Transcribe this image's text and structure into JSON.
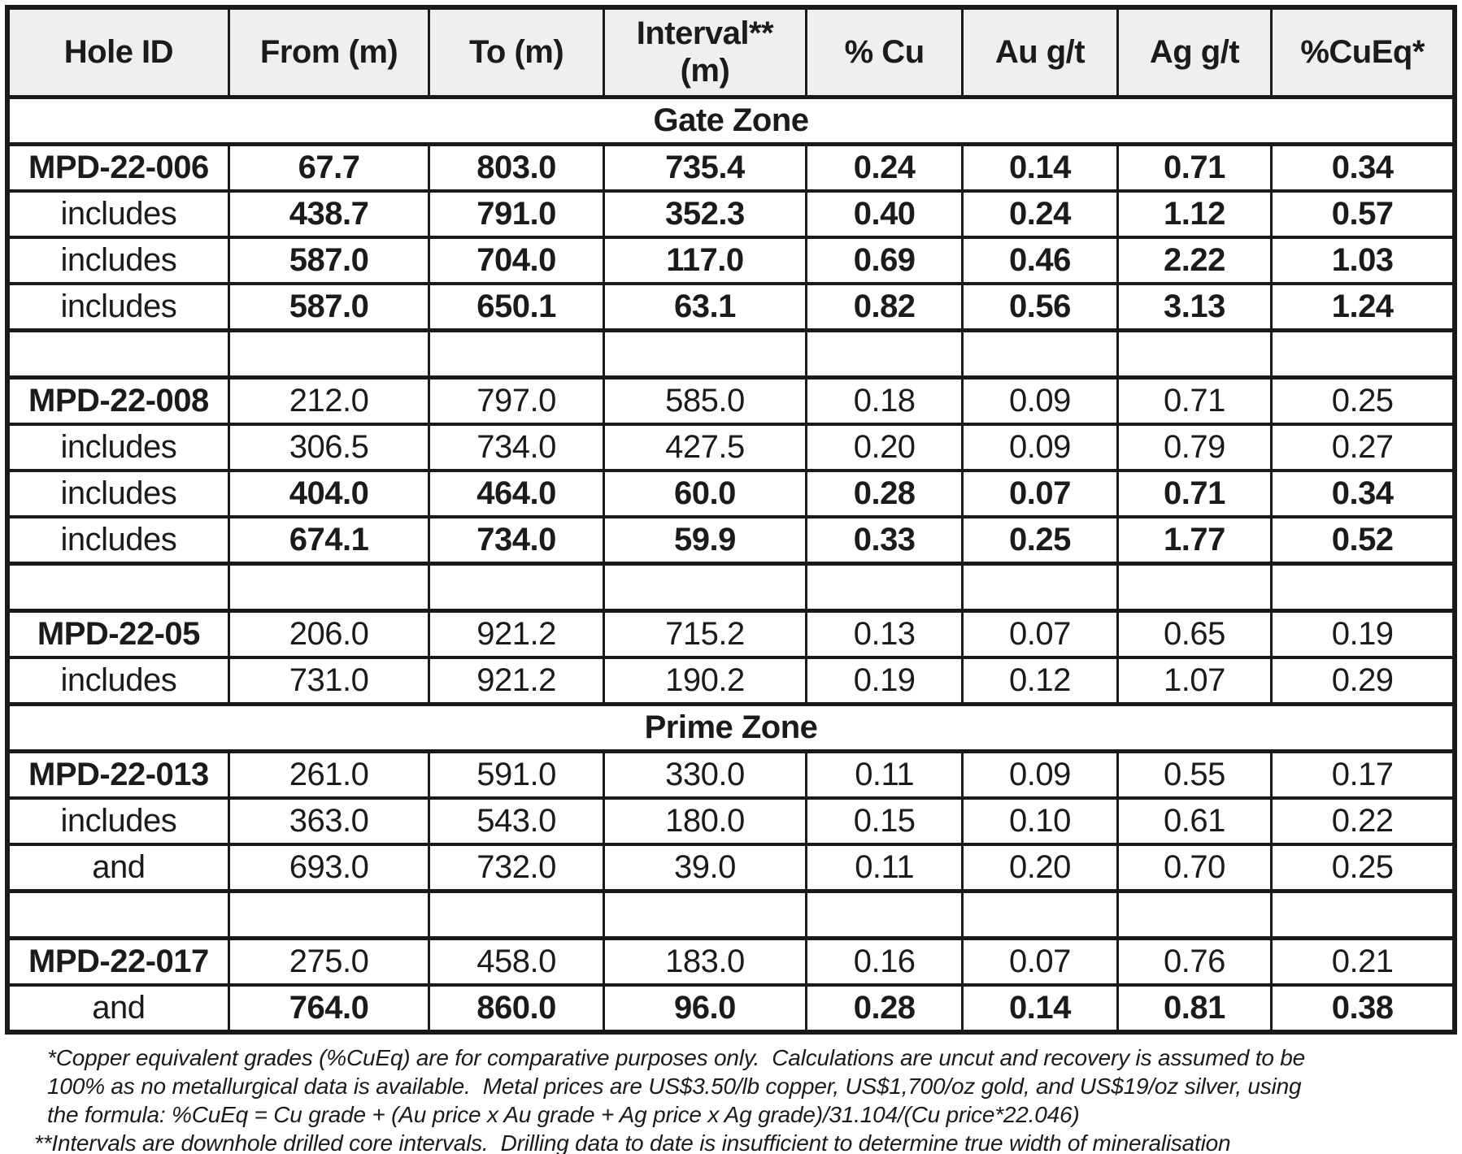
{
  "table": {
    "columns": [
      "Hole ID",
      "From (m)",
      "To (m)",
      "Interval**\n(m)",
      "% Cu",
      "Au g/t",
      "Ag g/t",
      "%CuEq*"
    ],
    "rows": [
      {
        "type": "zone",
        "label": "Gate Zone"
      },
      {
        "type": "data",
        "label": "MPD-22-006",
        "label_bold": true,
        "values_bold": true,
        "values": [
          "67.7",
          "803.0",
          "735.4",
          "0.24",
          "0.14",
          "0.71",
          "0.34"
        ]
      },
      {
        "type": "data",
        "label": "includes",
        "label_bold": false,
        "values_bold": true,
        "values": [
          "438.7",
          "791.0",
          "352.3",
          "0.40",
          "0.24",
          "1.12",
          "0.57"
        ]
      },
      {
        "type": "data",
        "label": "includes",
        "label_bold": false,
        "values_bold": true,
        "values": [
          "587.0",
          "704.0",
          "117.0",
          "0.69",
          "0.46",
          "2.22",
          "1.03"
        ]
      },
      {
        "type": "data",
        "label": "includes",
        "label_bold": false,
        "values_bold": true,
        "values": [
          "587.0",
          "650.1",
          "63.1",
          "0.82",
          "0.56",
          "3.13",
          "1.24"
        ]
      },
      {
        "type": "spacer"
      },
      {
        "type": "data",
        "label": "MPD-22-008",
        "label_bold": true,
        "values_bold": false,
        "values": [
          "212.0",
          "797.0",
          "585.0",
          "0.18",
          "0.09",
          "0.71",
          "0.25"
        ]
      },
      {
        "type": "data",
        "label": "includes",
        "label_bold": false,
        "values_bold": false,
        "values": [
          "306.5",
          "734.0",
          "427.5",
          "0.20",
          "0.09",
          "0.79",
          "0.27"
        ]
      },
      {
        "type": "data",
        "label": "includes",
        "label_bold": false,
        "values_bold": true,
        "values": [
          "404.0",
          "464.0",
          "60.0",
          "0.28",
          "0.07",
          "0.71",
          "0.34"
        ]
      },
      {
        "type": "data",
        "label": "includes",
        "label_bold": false,
        "values_bold": true,
        "values": [
          "674.1",
          "734.0",
          "59.9",
          "0.33",
          "0.25",
          "1.77",
          "0.52"
        ]
      },
      {
        "type": "spacer"
      },
      {
        "type": "data",
        "label": "MPD-22-05",
        "label_bold": true,
        "values_bold": false,
        "values": [
          "206.0",
          "921.2",
          "715.2",
          "0.13",
          "0.07",
          "0.65",
          "0.19"
        ]
      },
      {
        "type": "data",
        "label": "includes",
        "label_bold": false,
        "values_bold": false,
        "values": [
          "731.0",
          "921.2",
          "190.2",
          "0.19",
          "0.12",
          "1.07",
          "0.29"
        ]
      },
      {
        "type": "zone",
        "label": "Prime Zone"
      },
      {
        "type": "data",
        "label": "MPD-22-013",
        "label_bold": true,
        "values_bold": false,
        "values": [
          "261.0",
          "591.0",
          "330.0",
          "0.11",
          "0.09",
          "0.55",
          "0.17"
        ]
      },
      {
        "type": "data",
        "label": "includes",
        "label_bold": false,
        "values_bold": false,
        "values": [
          "363.0",
          "543.0",
          "180.0",
          "0.15",
          "0.10",
          "0.61",
          "0.22"
        ]
      },
      {
        "type": "data",
        "label": "and",
        "label_bold": false,
        "values_bold": false,
        "values": [
          "693.0",
          "732.0",
          "39.0",
          "0.11",
          "0.20",
          "0.70",
          "0.25"
        ]
      },
      {
        "type": "spacer"
      },
      {
        "type": "data",
        "label": "MPD-22-017",
        "label_bold": true,
        "values_bold": false,
        "values": [
          "275.0",
          "458.0",
          "183.0",
          "0.16",
          "0.07",
          "0.76",
          "0.21"
        ]
      },
      {
        "type": "data",
        "label": "and",
        "label_bold": false,
        "values_bold": true,
        "values": [
          "764.0",
          "860.0",
          "96.0",
          "0.28",
          "0.14",
          "0.81",
          "0.38"
        ]
      }
    ]
  },
  "footnotes": {
    "lines": [
      "*Copper equivalent grades (%CuEq) are for comparative purposes only.  Calculations are uncut and recovery is assumed to be",
      "100% as no metallurgical data is available.  Metal prices are US$3.50/lb copper, US$1,700/oz gold, and US$19/oz silver, using",
      "the formula: %CuEq = Cu grade + (Au price x Au grade + Ag price x Ag grade)/31.104/(Cu price*22.046)",
      "**Intervals are downhole drilled core intervals.  Drilling data to date is insufficient to determine true width of mineralisation"
    ]
  },
  "colors": {
    "border": "#1a1a1a",
    "header_bg": "#efefef",
    "text": "#1b1b1b",
    "page_bg": "#ffffff"
  }
}
